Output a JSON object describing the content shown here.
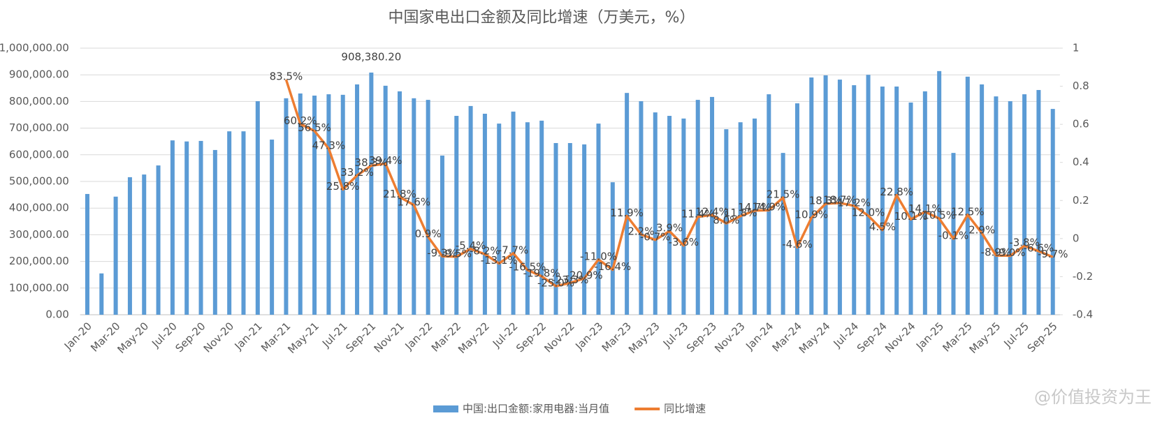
{
  "chart_data": {
    "type": "combo",
    "title": "中国家电出口金额及同比增速（万美元，%）",
    "categories": [
      "Jan-20",
      null,
      "Mar-20",
      null,
      "May-20",
      null,
      "Jul-20",
      null,
      "Sep-20",
      null,
      "Nov-20",
      null,
      "Jan-21",
      null,
      "Mar-21",
      null,
      "May-21",
      null,
      "Jul-21",
      null,
      "Sep-21",
      null,
      "Nov-21",
      null,
      "Jan-22",
      null,
      "Mar-22",
      null,
      "May-22",
      null,
      "Jul-22",
      null,
      "Sep-22",
      null,
      "Nov-22",
      null,
      "Jan-23",
      null,
      "Mar-23",
      null,
      "May-23",
      null,
      "Jul-23",
      null,
      "Sep-23",
      null,
      "Nov-23",
      null,
      "Jan-24",
      null,
      "Mar-24",
      null,
      "May-24",
      null,
      "Jul-24",
      null,
      "Sep-24",
      null,
      "Nov-24",
      null,
      "Jan-25",
      null,
      "Mar-25",
      null,
      "May-25",
      null,
      "Jul-25",
      null,
      "Sep-25"
    ],
    "series": [
      {
        "name": "中国:出口金额:家用电器:当月值",
        "type": "bar",
        "color": "#5b9bd5",
        "values": [
          453000,
          155000,
          443000,
          516000,
          526000,
          560000,
          654000,
          650000,
          652000,
          618000,
          688000,
          688000,
          801000,
          657000,
          812000,
          830000,
          822000,
          827000,
          825000,
          864000,
          908380.2,
          859000,
          838000,
          812000,
          806000,
          597000,
          746000,
          783000,
          754000,
          717000,
          762000,
          722000,
          728000,
          644000,
          644000,
          639000,
          717000,
          497000,
          832000,
          801000,
          759000,
          746000,
          736000,
          806000,
          817000,
          696000,
          722000,
          736000,
          827000,
          607000,
          793000,
          890000,
          898000,
          882000,
          861000,
          900000,
          856000,
          856000,
          796000,
          838000,
          914000,
          607000,
          893000,
          864000,
          819000,
          801000,
          827000,
          843000,
          772000
        ],
        "value_labels": [
          null,
          null,
          null,
          null,
          null,
          null,
          null,
          null,
          null,
          null,
          null,
          null,
          null,
          null,
          null,
          null,
          null,
          null,
          null,
          null,
          "908,380.20",
          null,
          null,
          null,
          null,
          null,
          null,
          null,
          null,
          null,
          null,
          null,
          null,
          null,
          null,
          null,
          null,
          null,
          null,
          null,
          null,
          null,
          null,
          null,
          null,
          null,
          null,
          null,
          null,
          null,
          null,
          null,
          null,
          null,
          null,
          null,
          null,
          null,
          null,
          null,
          null,
          null,
          null,
          null,
          null,
          null,
          null,
          null,
          null
        ]
      },
      {
        "name": "同比增速",
        "type": "line",
        "axis": "y2",
        "color": "#ed7d31",
        "values": [
          null,
          null,
          null,
          null,
          null,
          null,
          null,
          null,
          null,
          null,
          null,
          null,
          null,
          null,
          0.835,
          0.602,
          0.565,
          0.473,
          0.258,
          0.332,
          0.383,
          0.394,
          0.218,
          0.176,
          0.009,
          -0.093,
          -0.095,
          -0.054,
          -0.082,
          -0.131,
          -0.077,
          -0.165,
          -0.198,
          -0.25,
          -0.233,
          -0.209,
          -0.11,
          -0.164,
          0.119,
          0.022,
          -0.007,
          0.039,
          -0.036,
          0.114,
          0.124,
          0.08,
          0.118,
          0.147,
          0.149,
          0.215,
          -0.046,
          0.109,
          0.183,
          0.187,
          0.172,
          0.12,
          0.045,
          0.228,
          0.101,
          0.141,
          0.105,
          -0.001,
          0.125,
          0.029,
          -0.089,
          -0.09,
          -0.038,
          -0.066,
          -0.097
        ],
        "value_labels": [
          null,
          null,
          null,
          null,
          null,
          null,
          null,
          null,
          null,
          null,
          null,
          null,
          null,
          null,
          "83.5%",
          "60.2%",
          "56.5%",
          "47.3%",
          "25.8%",
          "33.2%",
          "38.3%",
          "39.4%",
          "21.8%",
          "17.6%",
          "0.9%",
          "-9.3%",
          "-9.5%",
          "-5.4%",
          "-8.2%",
          "-13.1%",
          "-7.7%",
          "-16.5%",
          "-19.8%",
          "-25.0%",
          "-23.3%",
          "-20.9%",
          "-11.0%",
          "-16.4%",
          "11.9%",
          "2.2%",
          "-0.7%",
          "3.9%",
          "-3.6%",
          "11.4%",
          "12.4%",
          "8.0%",
          "11.8%",
          "14.7%",
          "14.9%",
          "21.5%",
          "-4.6%",
          "10.9%",
          "18.3%",
          "18.7%",
          "17.2%",
          "12.0%",
          "4.5%",
          "22.8%",
          "10.1%",
          "14.1%",
          "10.5%",
          "-0.1%",
          "12.5%",
          "2.9%",
          "-8.9%",
          "-9.0%",
          "-3.8%",
          "-6.6%",
          "-9.7%"
        ]
      }
    ],
    "ylim": [
      0,
      1000000
    ],
    "yticks": [
      {
        "value": 0,
        "label": "0.00"
      },
      {
        "value": 100000,
        "label": "100,000.00"
      },
      {
        "value": 200000,
        "label": "200,000.00"
      },
      {
        "value": 300000,
        "label": "300,000.00"
      },
      {
        "value": 400000,
        "label": "400,000.00"
      },
      {
        "value": 500000,
        "label": "500,000.00"
      },
      {
        "value": 600000,
        "label": "600,000.00"
      },
      {
        "value": 700000,
        "label": "700,000.00"
      },
      {
        "value": 800000,
        "label": "800,000.00"
      },
      {
        "value": 900000,
        "label": "900,000.00"
      },
      {
        "value": 1000000,
        "label": "1,000,000.00"
      }
    ],
    "y2lim": [
      -0.4,
      1
    ],
    "y2ticks": [
      -0.4,
      -0.2,
      0,
      0.2,
      0.4,
      0.6,
      0.8,
      1
    ],
    "grid": true,
    "legend": "bottom"
  },
  "watermark": "@价值投资为王"
}
